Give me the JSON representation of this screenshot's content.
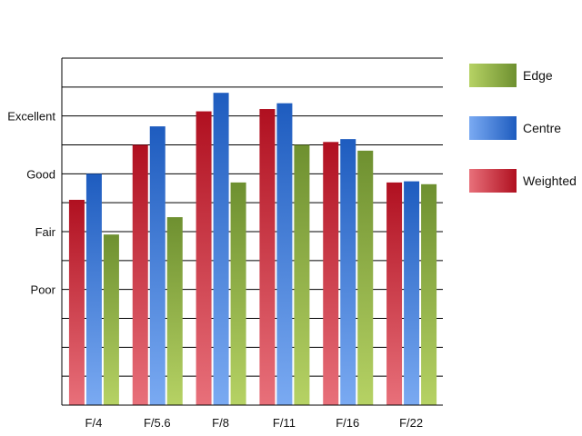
{
  "chart_data": {
    "type": "bar",
    "categories": [
      "F/4",
      "F/5.6",
      "F/8",
      "F/11",
      "F/16",
      "F/22"
    ],
    "series": [
      {
        "name": "Weighted",
        "values": [
          2.55,
          3.5,
          4.08,
          4.12,
          3.55,
          2.85
        ]
      },
      {
        "name": "Centre",
        "values": [
          3.0,
          3.82,
          4.4,
          4.22,
          3.6,
          2.87
        ]
      },
      {
        "name": "Edge",
        "values": [
          1.95,
          2.25,
          2.85,
          3.5,
          3.4,
          2.82
        ]
      }
    ],
    "y_tick_labels": [
      {
        "value": 1,
        "label": "Poor"
      },
      {
        "value": 2,
        "label": "Fair"
      },
      {
        "value": 3,
        "label": "Good"
      },
      {
        "value": 4,
        "label": "Excellent"
      }
    ],
    "ylim": [
      -1,
      5
    ],
    "grid": true,
    "legend_position": "right",
    "legend": [
      "Edge",
      "Centre",
      "Weighted"
    ],
    "colors": {
      "Weighted": {
        "light": "#e8707a",
        "dark": "#b01020"
      },
      "Centre": {
        "light": "#7aaaf2",
        "dark": "#1e5cbf"
      },
      "Edge": {
        "light": "#b6d264",
        "dark": "#6e9030"
      }
    }
  }
}
